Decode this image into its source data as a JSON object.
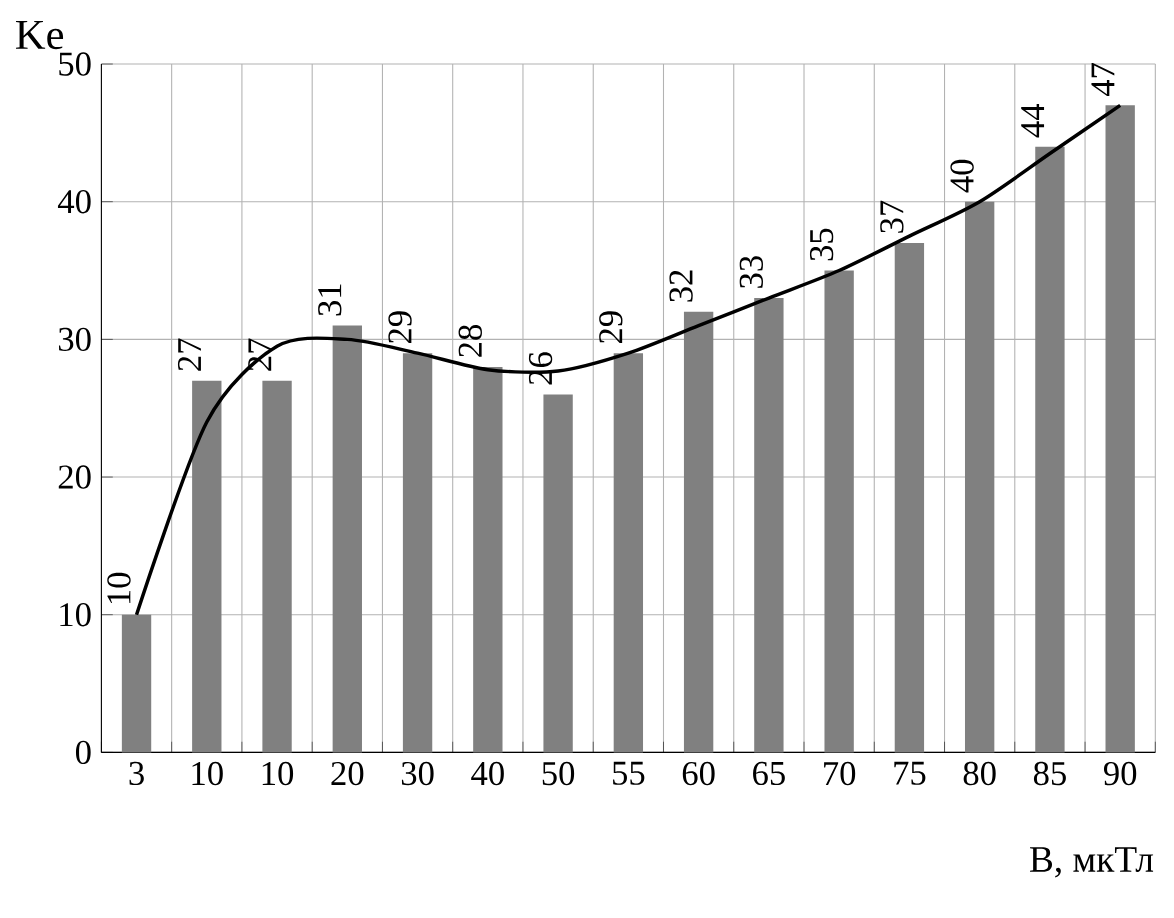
{
  "chart_data": {
    "type": "bar",
    "xlabel": "B, мкТл",
    "ylabel": "Ke",
    "categories": [
      "3",
      "10",
      "10",
      "20",
      "30",
      "40",
      "50",
      "55",
      "60",
      "65",
      "70",
      "75",
      "80",
      "85",
      "90"
    ],
    "series": [
      {
        "color": "#808080",
        "values": [
          10,
          27,
          27,
          31,
          29,
          28,
          26,
          29,
          32,
          33,
          35,
          37,
          40,
          44,
          47
        ],
        "value_labels": [
          "10",
          "27",
          "27",
          "31",
          "29",
          "28",
          "26",
          "29",
          "32",
          "33",
          "35",
          "37",
          "40",
          "44",
          "47"
        ]
      },
      {
        "type": "line",
        "color": "#000000",
        "values": [
          10,
          24,
          29.5,
          30,
          29,
          27.8,
          27.7,
          29,
          31,
          33,
          35,
          37.5,
          40,
          43.5,
          47
        ]
      }
    ],
    "ylim": [
      0,
      50
    ],
    "yticks": [
      0,
      10,
      20,
      30,
      40,
      50
    ],
    "grid": true
  }
}
